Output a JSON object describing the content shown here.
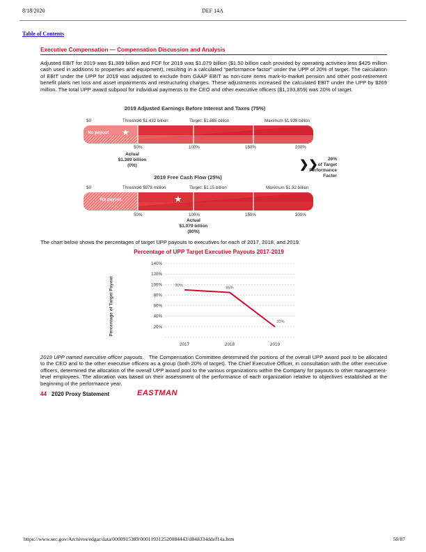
{
  "header": {
    "date": "8/18/2020",
    "doc": "DEF 14A"
  },
  "toc_link": "Table of Contents",
  "section": {
    "title": "Executive Compensation — Compensation Discussion and Analysis"
  },
  "intro_paragraph": "Adjusted EBIT for 2019 was $1.389 billion and FCF for 2019 was $1.079 billion ($1.50 billion cash provided by operating activities less $425 million cash used in additions to properties and equipment), resulting in a calculated “performance factor” under the UPP of 20% of target. The calculation of EBIT under the UPP for 2019 was adjusted to exclude from GAAP EBIT as non-core items mark-to-market pension and other post-retirement benefit plans net loss and asset impairments and restructuring charges. These adjustments increased the calculated EBIT under the UPP by $269 million. The total UPP award subpool for individual payments to the CEO and other executive officers ($1,193,859) was 20% of target.",
  "ebit_chart": {
    "title": "2019 Adjusted Earnings Before Interest and Taxes (75%)",
    "zero": "$0",
    "threshold": "Threshold $1.432 billion",
    "target": "Target: $1.685 billion",
    "maximum": "Maximum $1.938 billion",
    "no_payout": "No payout",
    "ticks": [
      "50%",
      "100%",
      "150%",
      "200%"
    ],
    "actual": [
      "Actual",
      "$1.389 billion",
      "(0%)"
    ]
  },
  "factor": {
    "value": "20%",
    "line2": "of Target",
    "line3": "Performance",
    "line4": "Factor",
    "arrow": "❯❯"
  },
  "fcf_chart": {
    "title": "2019 Free Cash Flow (25%)",
    "zero": "$0",
    "threshold": "Threshold $978 million",
    "target": "Target: $1.15 billion",
    "maximum": "Maximum $1.32 billion",
    "no_payout": "No payout",
    "ticks": [
      "50%",
      "100%",
      "150%",
      "200%"
    ],
    "actual": [
      "Actual",
      "$1.079 billion",
      "(80%)"
    ]
  },
  "chart_intro": "The chart below shows the percentages of target UPP payouts to executives for each of 2017, 2018, and 2019.",
  "chart_data": {
    "type": "line",
    "title": "Percentage of UPP Target Executive Payouts 2017-2019",
    "ylabel": "Percentage of Target Payout",
    "xlabel": "",
    "x": [
      "2017",
      "2018",
      "2019"
    ],
    "series": [
      {
        "values": [
          90,
          85,
          20
        ],
        "labels": [
          "90%",
          "85%",
          "20%"
        ]
      }
    ],
    "ylim": [
      0,
      140
    ],
    "yticks": [
      "140%",
      "120%",
      "100%",
      "80%",
      "60%",
      "40%",
      "20%"
    ],
    "grid": true,
    "color": "#c8102e"
  },
  "closing": {
    "lead": "2019 UPP named executive officer payouts.",
    "text": "The Compensation Committee determined the portions of the overall UPP award pool to be allocated to the CEO and to the other executive officers as a group (both 20% of target). The Chief Executive Officer, in consultation with the other executive officers, determined the allocation of the overall UPP award pool to the various organizations within the Company for payouts to other management-level employees. The allocation was based on their assessment of the performance of each organization relative to objectives established at the beginning of the performance year."
  },
  "footer": {
    "page_num": "44",
    "label": "2020 Proxy Statement",
    "logo": "EASTMAN"
  },
  "bottom": {
    "url": "https://www.sec.gov/Archives/edgar/data/0000915389/000119312520084443/d848334ddef14a.htm",
    "page": "50/87"
  },
  "colors": {
    "accent": "#c8102e",
    "bar_light": "#f08a8a",
    "bar_dark": "#d8242f"
  }
}
